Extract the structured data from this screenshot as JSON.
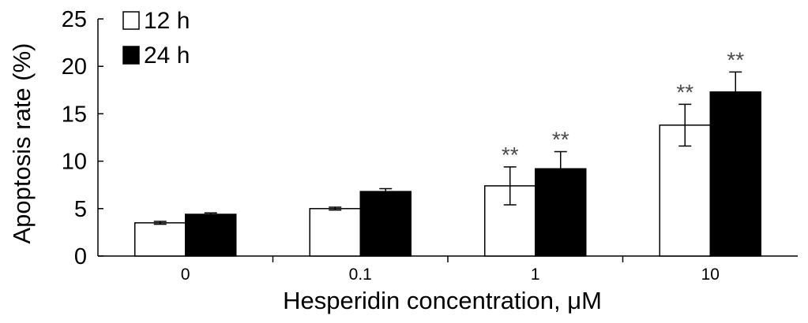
{
  "chart_data": {
    "type": "bar",
    "xlabel": "Hesperidin concentration, μM",
    "ylabel": "Apoptosis rate (%)",
    "ylim": [
      0,
      25
    ],
    "yticks": [
      0,
      5,
      10,
      15,
      20,
      25
    ],
    "categories": [
      "0",
      "0.1",
      "1",
      "10"
    ],
    "legend_position": "top-left",
    "series": [
      {
        "name": "12 h",
        "fill": "#ffffff",
        "values": [
          3.5,
          5.0,
          7.4,
          13.8
        ],
        "errors": [
          0.15,
          0.15,
          2.0,
          2.2
        ],
        "significance": [
          "",
          "",
          "**",
          "**"
        ]
      },
      {
        "name": "24 h",
        "fill": "#000000",
        "values": [
          4.4,
          6.8,
          9.2,
          17.3
        ],
        "errors": [
          0.15,
          0.3,
          1.8,
          2.1
        ],
        "significance": [
          "",
          "",
          "**",
          "**"
        ]
      }
    ]
  }
}
